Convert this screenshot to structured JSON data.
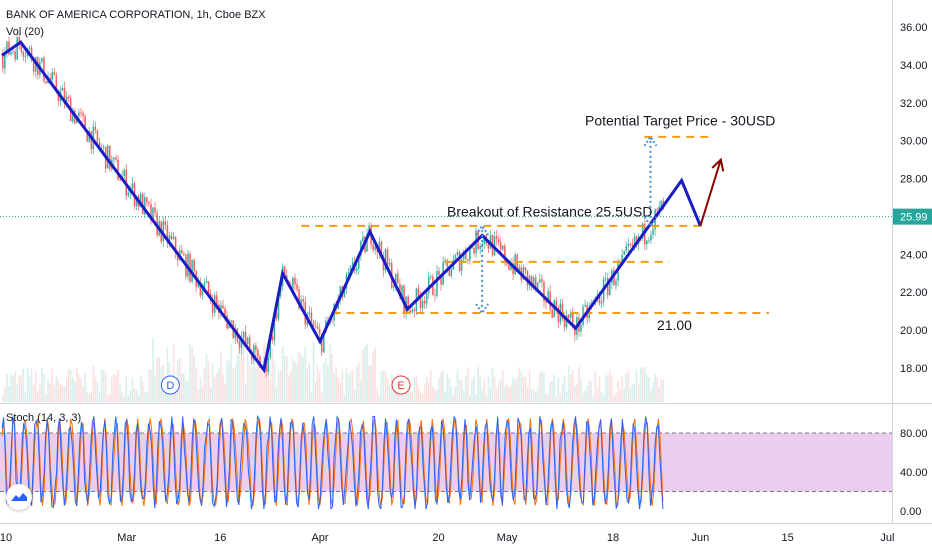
{
  "header": {
    "title": "BANK OF AMERICA CORPORATION, 1h, Cboe BZX",
    "vol_label": "Vol (20)"
  },
  "colors": {
    "up": "#26a69a",
    "down": "#ef5350",
    "pattern": "#1c1cc6",
    "resistance": "#f39c12",
    "target_arrow": "#8b0000",
    "dotted": "#4a90d9",
    "stoch_band": "#e1bee7",
    "stoch_k": "#2962ff",
    "stoch_d": "#ff6d00",
    "price_badge": "#26a69a"
  },
  "chart_data": [
    {
      "type": "line",
      "name": "price",
      "x_ticks": [
        "10",
        "Mar",
        "16",
        "Apr",
        "20",
        "May",
        "18",
        "Jun",
        "15",
        "Jul"
      ],
      "y_ticks": [
        "18.00",
        "20.00",
        "22.00",
        "24.00",
        "26.00",
        "28.00",
        "30.00",
        "32.00",
        "34.00",
        "36.00"
      ],
      "ylim": [
        16.7,
        37.2
      ],
      "last_price": "25.99",
      "pattern_line": [
        {
          "x": "Feb 10",
          "y": 34.5
        },
        {
          "x": "Feb 13",
          "y": 35.2
        },
        {
          "x": "Mar 23",
          "y": 17.9
        },
        {
          "x": "Mar 26",
          "y": 23.0
        },
        {
          "x": "Apr 1",
          "y": 19.4
        },
        {
          "x": "Apr 9",
          "y": 25.2
        },
        {
          "x": "Apr 15",
          "y": 21.1
        },
        {
          "x": "Apr 27",
          "y": 25.0
        },
        {
          "x": "May 12",
          "y": 20.1
        },
        {
          "x": "May 29",
          "y": 27.9
        },
        {
          "x": "Jun 1",
          "y": 25.5
        }
      ],
      "target_arrow": {
        "from": {
          "x": "Jun 1",
          "y": 25.5
        },
        "to": {
          "x": "Jun 3",
          "y": 29.0
        }
      },
      "levels": [
        {
          "label": "",
          "y": 25.5,
          "from": "Mar 29",
          "to": "Jun 2"
        },
        {
          "label": "",
          "y": 23.6,
          "from": "Apr 21",
          "to": "May 27"
        },
        {
          "label": "21.00",
          "y": 20.9,
          "from": "Apr 3",
          "to": "Jun 12"
        },
        {
          "label": "",
          "y": 30.2,
          "from": "May 23",
          "to": "Jun 3"
        }
      ],
      "annotations": [
        {
          "text": "Potential Target Price - 30USD"
        },
        {
          "text": "Breakout of Resistance 25.5USD"
        }
      ],
      "event_markers": [
        {
          "label": "D",
          "x": "Mar 8"
        },
        {
          "label": "E",
          "x": "Apr 14"
        }
      ],
      "candles_hint": "hourly candlesticks between Feb 10 and May 26, 2020"
    },
    {
      "type": "line",
      "name": "Stoch (14, 3, 3)",
      "y_ticks": [
        "0.00",
        "40.00",
        "80.00"
      ],
      "ylim": [
        -8,
        104
      ],
      "band": [
        20,
        80
      ]
    }
  ],
  "stoch_label": "Stoch (14, 3, 3)"
}
